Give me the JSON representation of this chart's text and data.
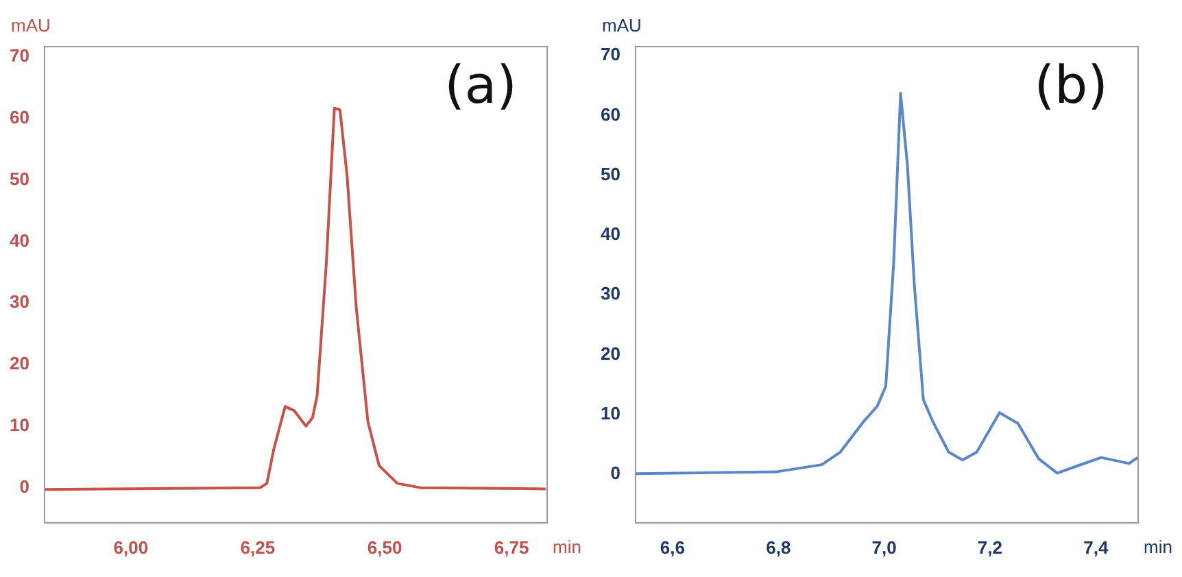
{
  "chart_data": [
    {
      "type": "line",
      "xlabel": "min",
      "ylabel": "mAU",
      "annotations": [
        "(a)"
      ],
      "xlim": [
        5.83,
        6.82
      ],
      "xticks": [
        {
          "value": 6,
          "label": "6,00"
        },
        {
          "value": 6.25,
          "label": "6,25"
        },
        {
          "value": 6.5,
          "label": "6,50"
        },
        {
          "value": 6.75,
          "label": "6,75"
        }
      ],
      "ylim": [
        -5.7,
        71.7
      ],
      "yticks": [
        0,
        10,
        20,
        30,
        40,
        50,
        60,
        70
      ],
      "grid": false,
      "legend": false,
      "series": [
        {
          "color": "#c8524a",
          "x": [
            5.83,
            6.255,
            6.268,
            6.282,
            6.304,
            6.322,
            6.345,
            6.358,
            6.367,
            6.385,
            6.401,
            6.412,
            6.426,
            6.444,
            6.467,
            6.489,
            6.525,
            6.57,
            6.817
          ],
          "values": [
            -0.3,
            0,
            0.7,
            6.4,
            13.2,
            12.5,
            10,
            11.4,
            15,
            36.4,
            61.7,
            61.4,
            50.7,
            29.3,
            10.7,
            3.6,
            0.7,
            0,
            -0.2
          ]
        }
      ]
    },
    {
      "type": "line",
      "xlabel": "min",
      "ylabel": "mAU",
      "annotations": [
        "(b)"
      ],
      "xlim": [
        6.53,
        7.48
      ],
      "xticks": [
        {
          "value": 6.6,
          "label": "6,6"
        },
        {
          "value": 6.8,
          "label": "6,8"
        },
        {
          "value": 7,
          "label": "7,0"
        },
        {
          "value": 7.2,
          "label": "7,2"
        },
        {
          "value": 7.4,
          "label": "7,4"
        }
      ],
      "ylim": [
        -8.1,
        71.5
      ],
      "yticks": [
        0,
        10,
        20,
        30,
        40,
        50,
        60,
        70
      ],
      "grid": false,
      "legend": false,
      "series": [
        {
          "color": "#5b86c9",
          "x": [
            6.531,
            6.795,
            6.882,
            6.917,
            6.961,
            6.987,
            7.003,
            7.018,
            7.031,
            7.044,
            7.057,
            7.074,
            7.092,
            7.122,
            7.148,
            7.175,
            7.218,
            7.253,
            7.292,
            7.327,
            7.362,
            7.41,
            7.463,
            7.479
          ],
          "values": [
            0.1,
            0.4,
            1.6,
            3.7,
            8.8,
            11.4,
            14.7,
            35.4,
            63.7,
            51.6,
            31.7,
            12.5,
            8.8,
            3.7,
            2.4,
            3.7,
            10.3,
            8.5,
            2.6,
            0.2,
            1.3,
            2.8,
            1.8,
            2.8
          ]
        }
      ]
    }
  ]
}
